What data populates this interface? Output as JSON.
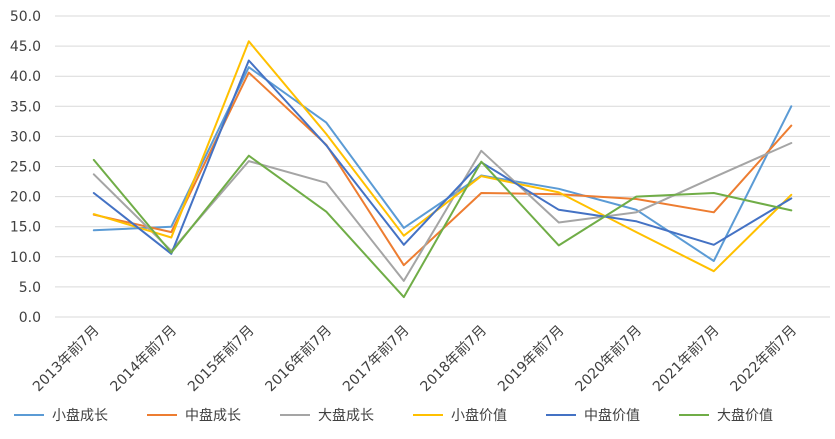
{
  "chart_data": {
    "type": "line",
    "title": "",
    "xlabel": "",
    "ylabel": "",
    "categories": [
      "2013年前7月",
      "2014年前7月",
      "2015年前7月",
      "2016年前7月",
      "2017年前7月",
      "2018年前7月",
      "2019年前7月",
      "2020年前7月",
      "2021年前7月",
      "2022年前7月"
    ],
    "y_ticks": [
      "0.0",
      "5.0",
      "10.0",
      "15.0",
      "20.0",
      "25.0",
      "30.0",
      "35.0",
      "40.0",
      "45.0",
      "50.0"
    ],
    "ylim": [
      0,
      50
    ],
    "grid": "horizontal",
    "legend_position": "bottom",
    "series": [
      {
        "name": "小盘成长",
        "color": "#5b9bd5",
        "values": [
          14.4,
          15.0,
          41.5,
          32.3,
          14.8,
          23.5,
          21.3,
          17.8,
          9.3,
          35.0
        ]
      },
      {
        "name": "中盘成长",
        "color": "#ed7d31",
        "values": [
          17.0,
          14.1,
          40.6,
          28.6,
          8.6,
          20.6,
          20.4,
          19.6,
          17.4,
          31.8
        ]
      },
      {
        "name": "大盘成长",
        "color": "#a5a5a5",
        "values": [
          23.7,
          11.0,
          25.9,
          22.3,
          6.0,
          27.6,
          15.7,
          17.4,
          23.2,
          28.9
        ]
      },
      {
        "name": "小盘价值",
        "color": "#ffc000",
        "values": [
          17.1,
          13.2,
          45.8,
          30.4,
          13.5,
          23.4,
          20.7,
          14.1,
          7.6,
          20.3
        ]
      },
      {
        "name": "中盘价值",
        "color": "#4472c4",
        "values": [
          20.6,
          10.5,
          42.6,
          28.5,
          12.0,
          25.7,
          17.8,
          15.9,
          12.0,
          19.7
        ]
      },
      {
        "name": "大盘价值",
        "color": "#70ad47",
        "values": [
          26.1,
          10.7,
          26.8,
          17.5,
          3.3,
          25.8,
          11.9,
          20.0,
          20.6,
          17.7
        ]
      }
    ]
  }
}
